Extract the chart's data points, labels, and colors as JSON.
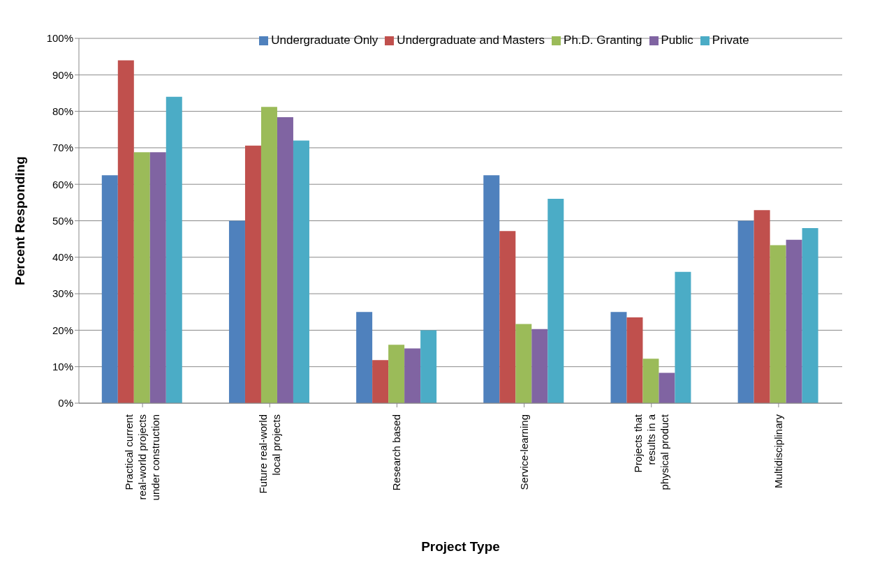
{
  "chart_data": {
    "type": "bar",
    "xlabel": "Project Type",
    "ylabel": "Percent Responding",
    "categories": [
      "Practical current real-world projects under construction",
      "Future real-world local projects",
      "Research based",
      "Service-learning",
      "Projects that results in a physical product",
      "Multidisciplinary"
    ],
    "series": [
      {
        "name": "Undergraduate Only",
        "color": "#4f81bd",
        "values": [
          62.5,
          50,
          25,
          62.5,
          25,
          50
        ]
      },
      {
        "name": "Undergraduate and Masters",
        "color": "#c0504d",
        "values": [
          94,
          70.6,
          11.8,
          47.2,
          23.5,
          52.9
        ]
      },
      {
        "name": "Ph.D. Granting",
        "color": "#9bbb59",
        "values": [
          68.8,
          81.2,
          16,
          21.7,
          12.2,
          43.3
        ]
      },
      {
        "name": "Public",
        "color": "#8064a2",
        "values": [
          68.8,
          78.4,
          15,
          20.3,
          8.3,
          44.8
        ]
      },
      {
        "name": "Private",
        "color": "#4bacc6",
        "values": [
          84,
          72,
          20,
          56,
          36,
          48
        ]
      }
    ],
    "ylim": [
      0,
      100
    ],
    "yticks": [
      {
        "value": 0,
        "label": "0%"
      },
      {
        "value": 10,
        "label": "10%"
      },
      {
        "value": 20,
        "label": "20%"
      },
      {
        "value": 30,
        "label": "30%"
      },
      {
        "value": 40,
        "label": "40%"
      },
      {
        "value": 50,
        "label": "50%"
      },
      {
        "value": 60,
        "label": "60%"
      },
      {
        "value": 70,
        "label": "70%"
      },
      {
        "value": 80,
        "label": "80%"
      },
      {
        "value": 90,
        "label": "90%"
      },
      {
        "value": 100,
        "label": "100%"
      }
    ],
    "grid": "y",
    "legend": "top"
  }
}
